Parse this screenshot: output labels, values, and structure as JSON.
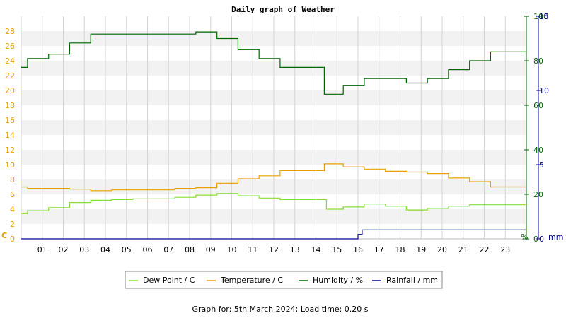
{
  "chart_data": {
    "type": "line",
    "title": "Daily graph of Weather",
    "footer": "Graph for: 5th March 2024; Load time: 0.20 s",
    "x_ticks": [
      "01",
      "02",
      "03",
      "04",
      "05",
      "06",
      "07",
      "08",
      "09",
      "10",
      "11",
      "12",
      "13",
      "14",
      "15",
      "16",
      "17",
      "18",
      "19",
      "20",
      "21",
      "22",
      "23"
    ],
    "xlim": [
      0,
      24
    ],
    "axes": {
      "temperature": {
        "unit": "C",
        "min": 0,
        "max": 30,
        "ticks": [
          0,
          2,
          4,
          6,
          8,
          10,
          12,
          14,
          16,
          18,
          20,
          22,
          24,
          26,
          28
        ],
        "color": "#e8a000"
      },
      "humidity": {
        "unit": "%",
        "min": 0,
        "max": 100,
        "ticks": [
          0,
          20,
          40,
          60,
          80,
          100
        ],
        "color": "#006600"
      },
      "rainfall": {
        "unit": "mm",
        "min": 0,
        "max": 15,
        "ticks": [
          0,
          5,
          10,
          15
        ],
        "color": "#000099"
      }
    },
    "grid": true,
    "legend_position": "bottom",
    "series": [
      {
        "name": "Dew Point / C",
        "axis": "temperature",
        "color": "#88dd33",
        "x": [
          0,
          0.2,
          0.3,
          1.3,
          2.3,
          3.3,
          4.3,
          5.3,
          7.3,
          8.3,
          9.3,
          10.3,
          11.3,
          12.3,
          14.3,
          14.5,
          15.3,
          16.3,
          17.3,
          18.3,
          19.3,
          20.3,
          21.3,
          24
        ],
        "y": [
          3.4,
          3.4,
          3.8,
          4.2,
          4.9,
          5.2,
          5.3,
          5.4,
          5.6,
          5.9,
          6.1,
          5.8,
          5.5,
          5.3,
          5.3,
          4.0,
          4.3,
          4.7,
          4.4,
          3.9,
          4.1,
          4.4,
          4.6,
          4.6
        ]
      },
      {
        "name": "Temperature / C",
        "axis": "temperature",
        "color": "#e8a000",
        "x": [
          0,
          0.2,
          0.3,
          2.3,
          3.3,
          4.3,
          7.3,
          8.3,
          9.3,
          10.3,
          11.3,
          12.3,
          14.3,
          14.4,
          15.3,
          16.3,
          17.3,
          18.3,
          19.3,
          20.3,
          21.3,
          22.3,
          24
        ],
        "y": [
          7.0,
          7.0,
          6.8,
          6.7,
          6.5,
          6.6,
          6.8,
          6.9,
          7.5,
          8.1,
          8.5,
          9.2,
          9.2,
          10.1,
          9.7,
          9.4,
          9.1,
          9.0,
          8.8,
          8.2,
          7.7,
          7.0,
          7.0
        ]
      },
      {
        "name": "Humidity / %",
        "axis": "humidity",
        "color": "#006600",
        "x": [
          0,
          0.2,
          0.3,
          1.3,
          2.3,
          3.3,
          8.3,
          9.3,
          10.3,
          11.3,
          12.3,
          14.3,
          14.4,
          15.3,
          16.3,
          18.3,
          19.3,
          20.3,
          21.3,
          22.3,
          24
        ],
        "y": [
          77,
          77,
          81,
          83,
          88,
          92,
          93,
          90,
          85,
          81,
          77,
          77,
          65,
          69,
          72,
          70,
          72,
          76,
          80,
          84,
          84
        ]
      },
      {
        "name": "Rainfall / mm",
        "axis": "rainfall",
        "color": "#000099",
        "x": [
          0,
          15.8,
          16.0,
          16.2,
          24
        ],
        "y": [
          0,
          0,
          0.3,
          0.6,
          0.6
        ]
      }
    ]
  }
}
